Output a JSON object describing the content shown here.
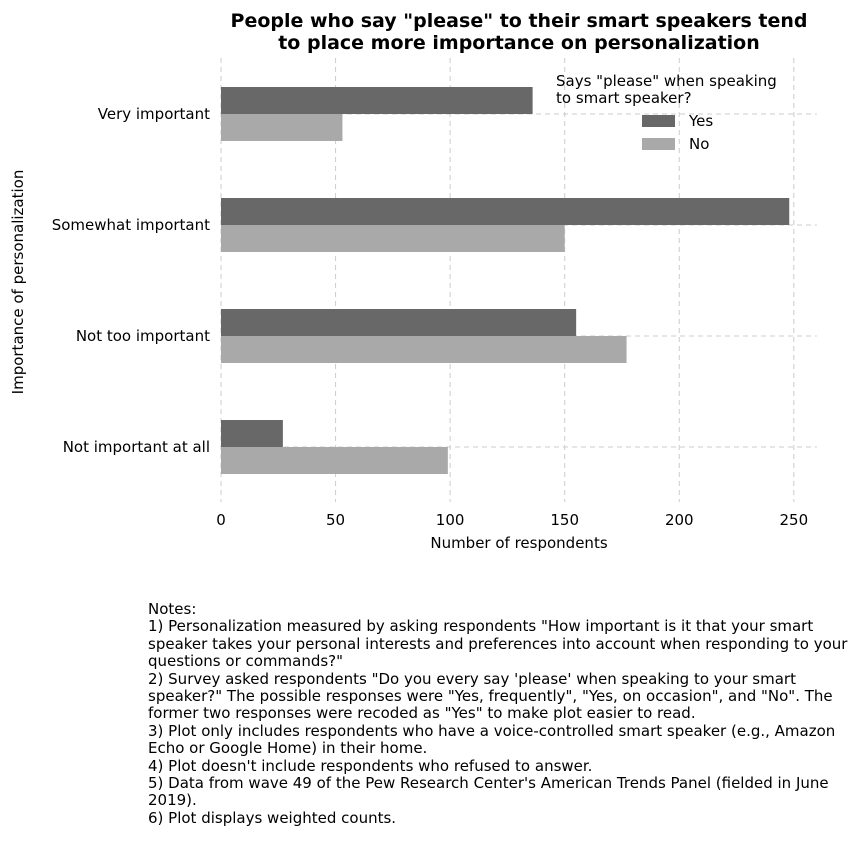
{
  "chart_data": {
    "type": "bar",
    "orientation": "horizontal",
    "title": "People who say \"please\" to their smart speakers tend\nto place more importance on personalization",
    "xlabel": "Number of respondents",
    "ylabel": "Importance of personalization",
    "categories": [
      "Very important",
      "Somewhat important",
      "Not too important",
      "Not important at all"
    ],
    "series": [
      {
        "name": "Yes",
        "color": "#686868",
        "values": [
          136,
          248,
          155,
          27
        ]
      },
      {
        "name": "No",
        "color": "#a9a9a9",
        "values": [
          53,
          150,
          177,
          99
        ]
      }
    ],
    "xlim": [
      0,
      260
    ],
    "xticks": [
      0,
      50,
      100,
      150,
      200,
      250
    ],
    "grid": true,
    "legend": {
      "title": "Says \"please\" when speaking\nto smart speaker?",
      "placement": "top-right"
    }
  },
  "notes": {
    "heading": "Notes:",
    "lines": [
      "1) Personalization measured by asking respondents \"How important is it that your smart speaker takes your personal interests and preferences into account when responding to your questions or commands?\"",
      "2) Survey asked respondents \"Do you every say 'please' when speaking to your smart speaker?\" The possible responses were \"Yes, frequently\", \"Yes, on occasion\", and \"No\". The former two responses were recoded as \"Yes\" to make plot easier to read.",
      "3) Plot only includes respondents who have a voice-controlled smart speaker (e.g., Amazon Echo or Google Home) in their home.",
      "4) Plot doesn't include respondents who refused to answer.",
      "5) Data from wave 49 of the Pew Research Center's American Trends Panel (fielded in June 2019).",
      "6) Plot displays weighted counts."
    ]
  }
}
